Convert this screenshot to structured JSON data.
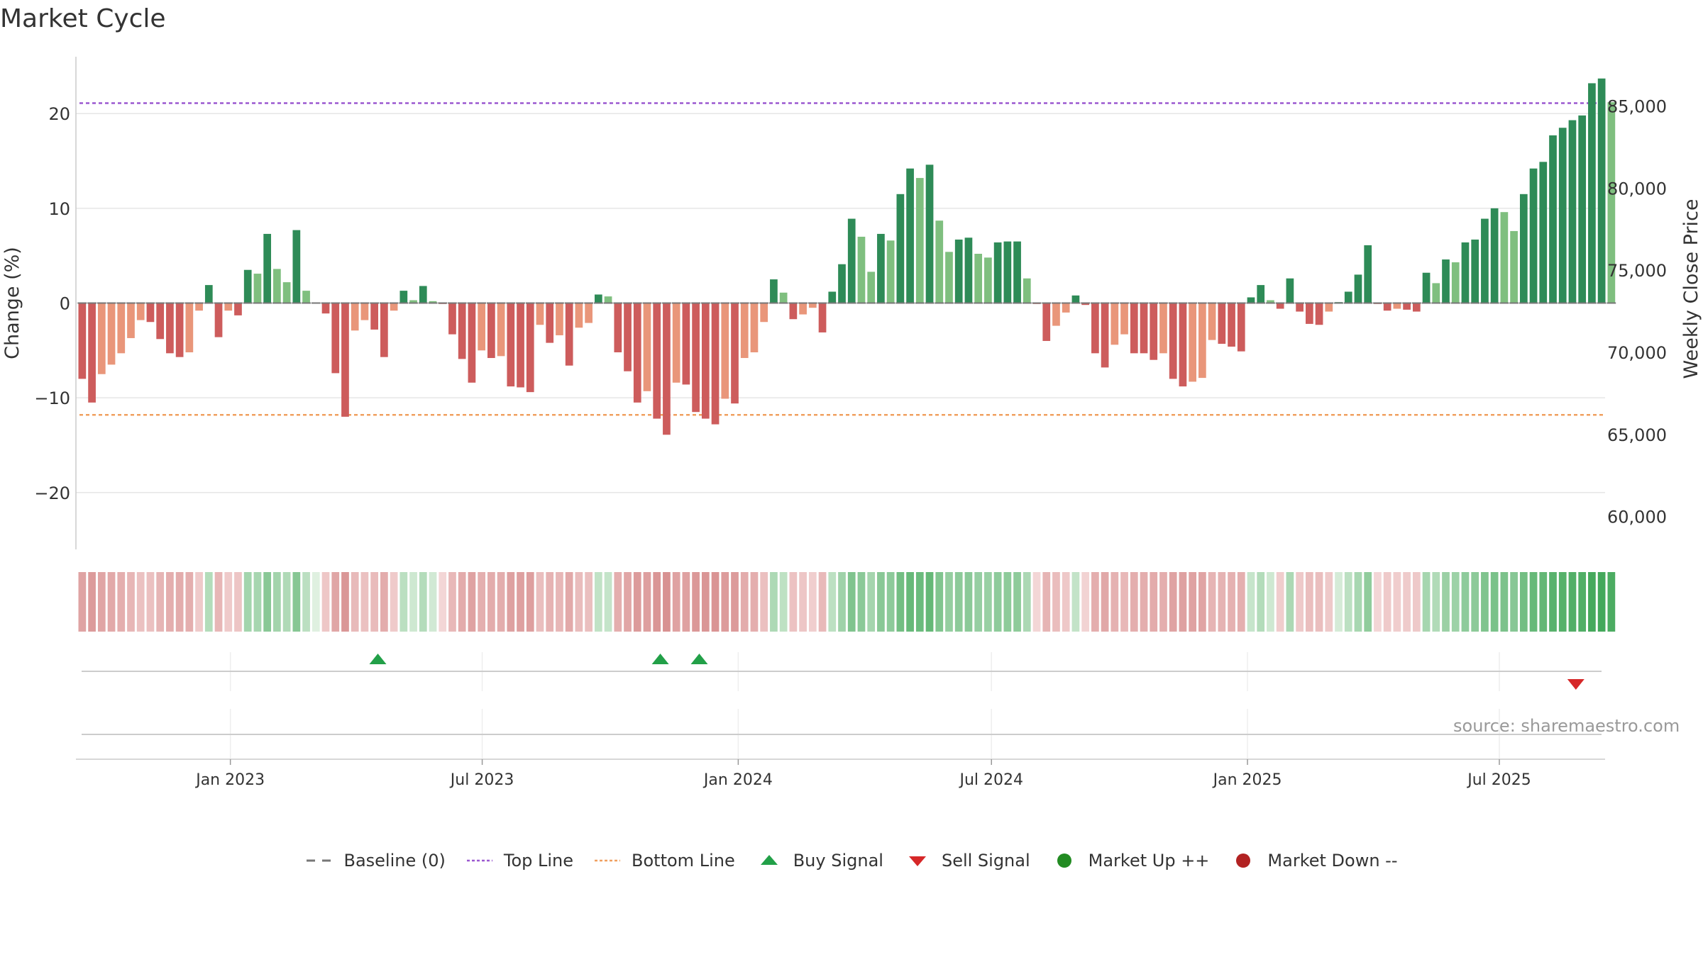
{
  "title": "Market Cycle",
  "source": "source: sharemaestro.com",
  "colors": {
    "strong_up": "#2e8b57",
    "mild_up": "#7fbf7f",
    "strong_down": "#cd5c5c",
    "mild_down": "#e9967a",
    "top_line": "#9b59d0",
    "bottom_line": "#f0a060",
    "buy": "#22a048",
    "sell": "#d62728",
    "market_up": "#228b22",
    "market_down": "#b22222",
    "baseline": "#777777"
  },
  "legend": [
    {
      "key": "baseline",
      "label": "Baseline (0)"
    },
    {
      "key": "top",
      "label": "Top Line"
    },
    {
      "key": "bottom",
      "label": "Bottom Line"
    },
    {
      "key": "buy",
      "label": "Buy Signal"
    },
    {
      "key": "sell",
      "label": "Sell Signal"
    },
    {
      "key": "up",
      "label": "Market Up ++"
    },
    {
      "key": "down",
      "label": "Market Down --"
    }
  ],
  "chart_data": {
    "type": "bar",
    "title": "Market Cycle",
    "ylabel": "Change (%)",
    "ylabel_right": "Weekly Close Price",
    "ylim": [
      -26,
      26
    ],
    "yticks": [
      20,
      10,
      0,
      -10,
      -20
    ],
    "ytick_labels": [
      "20",
      "10",
      "0",
      "−10",
      "−20"
    ],
    "right_ylim": [
      58000,
      88000
    ],
    "right_yticks": [
      85000,
      80000,
      75000,
      70000,
      65000,
      60000
    ],
    "right_ytick_labels": [
      "85,000",
      "80,000",
      "75,000",
      "70,000",
      "65,000",
      "60,000"
    ],
    "top_line": 21.1,
    "bottom_line": -11.8,
    "x_start": "2022-09-12",
    "x_end": "2025-09-15",
    "xtick_dates": [
      "2023-01-01",
      "2023-07-01",
      "2024-01-01",
      "2024-07-01",
      "2025-01-01",
      "2025-07-01"
    ],
    "xtick_labels": [
      "Jan 2023",
      "Jul 2023",
      "Jan 2024",
      "Jul 2024",
      "Jan 2025",
      "Jul 2025"
    ],
    "first_week": "2022-09-12",
    "values": [
      -8,
      -10.5,
      -7.5,
      -6.5,
      -5.3,
      -3.7,
      -1.8,
      -2,
      -3.8,
      -5.3,
      -5.7,
      -5.2,
      -0.8,
      1.9,
      -3.6,
      -0.8,
      -1.3,
      3.5,
      3.1,
      7.3,
      3.6,
      2.2,
      7.7,
      1.3,
      0,
      -1.1,
      -7.4,
      -12,
      -2.9,
      -1.8,
      -2.8,
      -5.7,
      -0.8,
      1.3,
      0.3,
      1.8,
      0.2,
      -0.1,
      -3.3,
      -5.9,
      -8.4,
      -5,
      -5.8,
      -5.6,
      -8.8,
      -8.9,
      -9.4,
      -2.3,
      -4.2,
      -3.4,
      -6.6,
      -2.6,
      -2.1,
      0.9,
      0.7,
      -5.2,
      -7.2,
      -10.5,
      -9.3,
      -12.2,
      -13.9,
      -8.4,
      -8.6,
      -11.5,
      -12.2,
      -12.8,
      -10.1,
      -10.6,
      -5.8,
      -5.2,
      -2,
      2.5,
      1.1,
      -1.7,
      -1.2,
      -0.5,
      -3.1,
      1.2,
      4.1,
      8.9,
      7,
      3.3,
      7.3,
      6.6,
      11.5,
      14.2,
      13.2,
      14.6,
      8.7,
      5.4,
      6.7,
      6.9,
      5.2,
      4.8,
      6.4,
      6.5,
      6.5,
      2.6,
      -0.1,
      -4,
      -2.4,
      -1,
      0.8,
      -0.2,
      -5.3,
      -6.8,
      -4.4,
      -3.3,
      -5.3,
      -5.3,
      -6,
      -5.3,
      -8,
      -8.8,
      -8.3,
      -7.9,
      -3.9,
      -4.3,
      -4.6,
      -5.1,
      0.6,
      1.9,
      0.3,
      -0.6,
      2.6,
      -0.9,
      -2.2,
      -2.3,
      -0.9,
      0.1,
      1.2,
      3,
      6.1,
      -0.1,
      -0.8,
      -0.6,
      -0.7,
      -0.9,
      3.2,
      2.1,
      4.6,
      4.3,
      6.4,
      6.7,
      8.9,
      10,
      9.6,
      7.6,
      11.5,
      14.2,
      14.9,
      17.7,
      18.5,
      19.3,
      19.8,
      23.2,
      23.7,
      21.2
    ],
    "price_series": "not drawn",
    "buy_signals": [
      "2023-04-17",
      "2023-11-06",
      "2023-12-04"
    ],
    "sell_signals": [
      "2025-08-25"
    ]
  }
}
